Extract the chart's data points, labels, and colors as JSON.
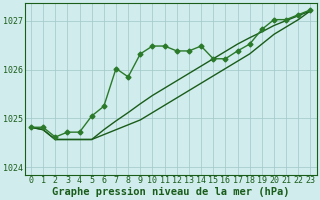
{
  "xlabel": "Graphe pression niveau de la mer (hPa)",
  "ylim": [
    1023.85,
    1027.35
  ],
  "xlim": [
    -0.5,
    23.5
  ],
  "yticks": [
    1024,
    1025,
    1026,
    1027
  ],
  "xticks": [
    0,
    1,
    2,
    3,
    4,
    5,
    6,
    7,
    8,
    9,
    10,
    11,
    12,
    13,
    14,
    15,
    16,
    17,
    18,
    19,
    20,
    21,
    22,
    23
  ],
  "bg_color": "#d0ecec",
  "grid_color": "#a0c8c8",
  "line_color_dark": "#1a5c1a",
  "line_color_med": "#2a7a2a",
  "series_main": [
    1024.82,
    1024.82,
    1024.62,
    1024.72,
    1024.72,
    1025.05,
    1025.25,
    1026.02,
    1025.85,
    1026.32,
    1026.48,
    1026.48,
    1026.38,
    1026.38,
    1026.48,
    1026.22,
    1026.22,
    1026.38,
    1026.52,
    1026.82,
    1027.02,
    1027.02,
    1027.12,
    1027.22
  ],
  "series_line2": [
    1024.82,
    1024.77,
    1024.57,
    1024.57,
    1024.57,
    1024.57,
    1024.77,
    1024.95,
    1025.12,
    1025.3,
    1025.47,
    1025.62,
    1025.77,
    1025.92,
    1026.07,
    1026.22,
    1026.37,
    1026.52,
    1026.65,
    1026.77,
    1026.9,
    1027.0,
    1027.1,
    1027.2
  ],
  "series_line3": [
    1024.82,
    1024.77,
    1024.57,
    1024.57,
    1024.57,
    1024.57,
    1024.67,
    1024.77,
    1024.87,
    1024.97,
    1025.12,
    1025.27,
    1025.42,
    1025.57,
    1025.72,
    1025.87,
    1026.02,
    1026.17,
    1026.32,
    1026.52,
    1026.72,
    1026.87,
    1027.02,
    1027.2
  ],
  "marker": "D",
  "markersize": 2.5,
  "linewidth": 1.0,
  "tick_fontsize": 6,
  "label_fontsize": 7.5
}
